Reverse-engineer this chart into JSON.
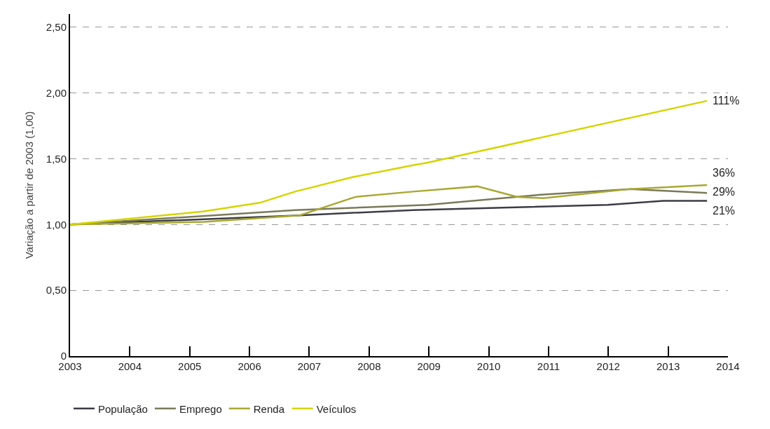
{
  "chart_data": {
    "type": "line",
    "ylabel": "Variação a partir de 2003 (1,00)",
    "series": [
      {
        "name": "População",
        "color": "#3c3c46",
        "x": [
          2003,
          2006.84,
          2008.73,
          2011.99,
          2012.92,
          2013.65
        ],
        "values": [
          1.0,
          1.07,
          1.11,
          1.15,
          1.18,
          1.18
        ]
      },
      {
        "name": "Emprego",
        "color": "#7a7a5a",
        "x": [
          2003,
          2006.76,
          2008.98,
          2010.83,
          2012.37,
          2013.65
        ],
        "values": [
          1.0,
          1.11,
          1.15,
          1.225,
          1.27,
          1.24
        ]
      },
      {
        "name": "Renda",
        "color": "#a8a832",
        "x": [
          2003,
          2005.24,
          2006.84,
          2007.77,
          2008.73,
          2009.81,
          2010.48,
          2010.91,
          2012.37,
          2013.65
        ],
        "values": [
          1.0,
          1.02,
          1.07,
          1.21,
          1.25,
          1.29,
          1.21,
          1.2,
          1.27,
          1.3
        ]
      },
      {
        "name": "Veículos",
        "color": "#d4d400",
        "x": [
          2003,
          2005.24,
          2006.17,
          2006.76,
          2007.72,
          2008.73,
          2008.98,
          2013.65
        ],
        "values": [
          1.0,
          1.1,
          1.165,
          1.25,
          1.36,
          1.45,
          1.47,
          1.94
        ]
      }
    ],
    "annotations": [
      "111%",
      "36%",
      "29%",
      "21%"
    ],
    "xlim": [
      2003,
      2014
    ],
    "xticks": [
      2003,
      2004,
      2005,
      2006,
      2007,
      2008,
      2009,
      2010,
      2011,
      2012,
      2013,
      2014
    ],
    "ylim": [
      0,
      2.6
    ],
    "yticks": [
      {
        "value": 0,
        "label": "0"
      },
      {
        "value": 0.5,
        "label": "0,50"
      },
      {
        "value": 1,
        "label": "1,00"
      },
      {
        "value": 1.5,
        "label": "1,50"
      },
      {
        "value": 2,
        "label": "2,00"
      },
      {
        "value": 2.5,
        "label": "2,50"
      }
    ],
    "grid": "y",
    "legend": "bottom left",
    "marker": "none",
    "line_style": "solid"
  }
}
